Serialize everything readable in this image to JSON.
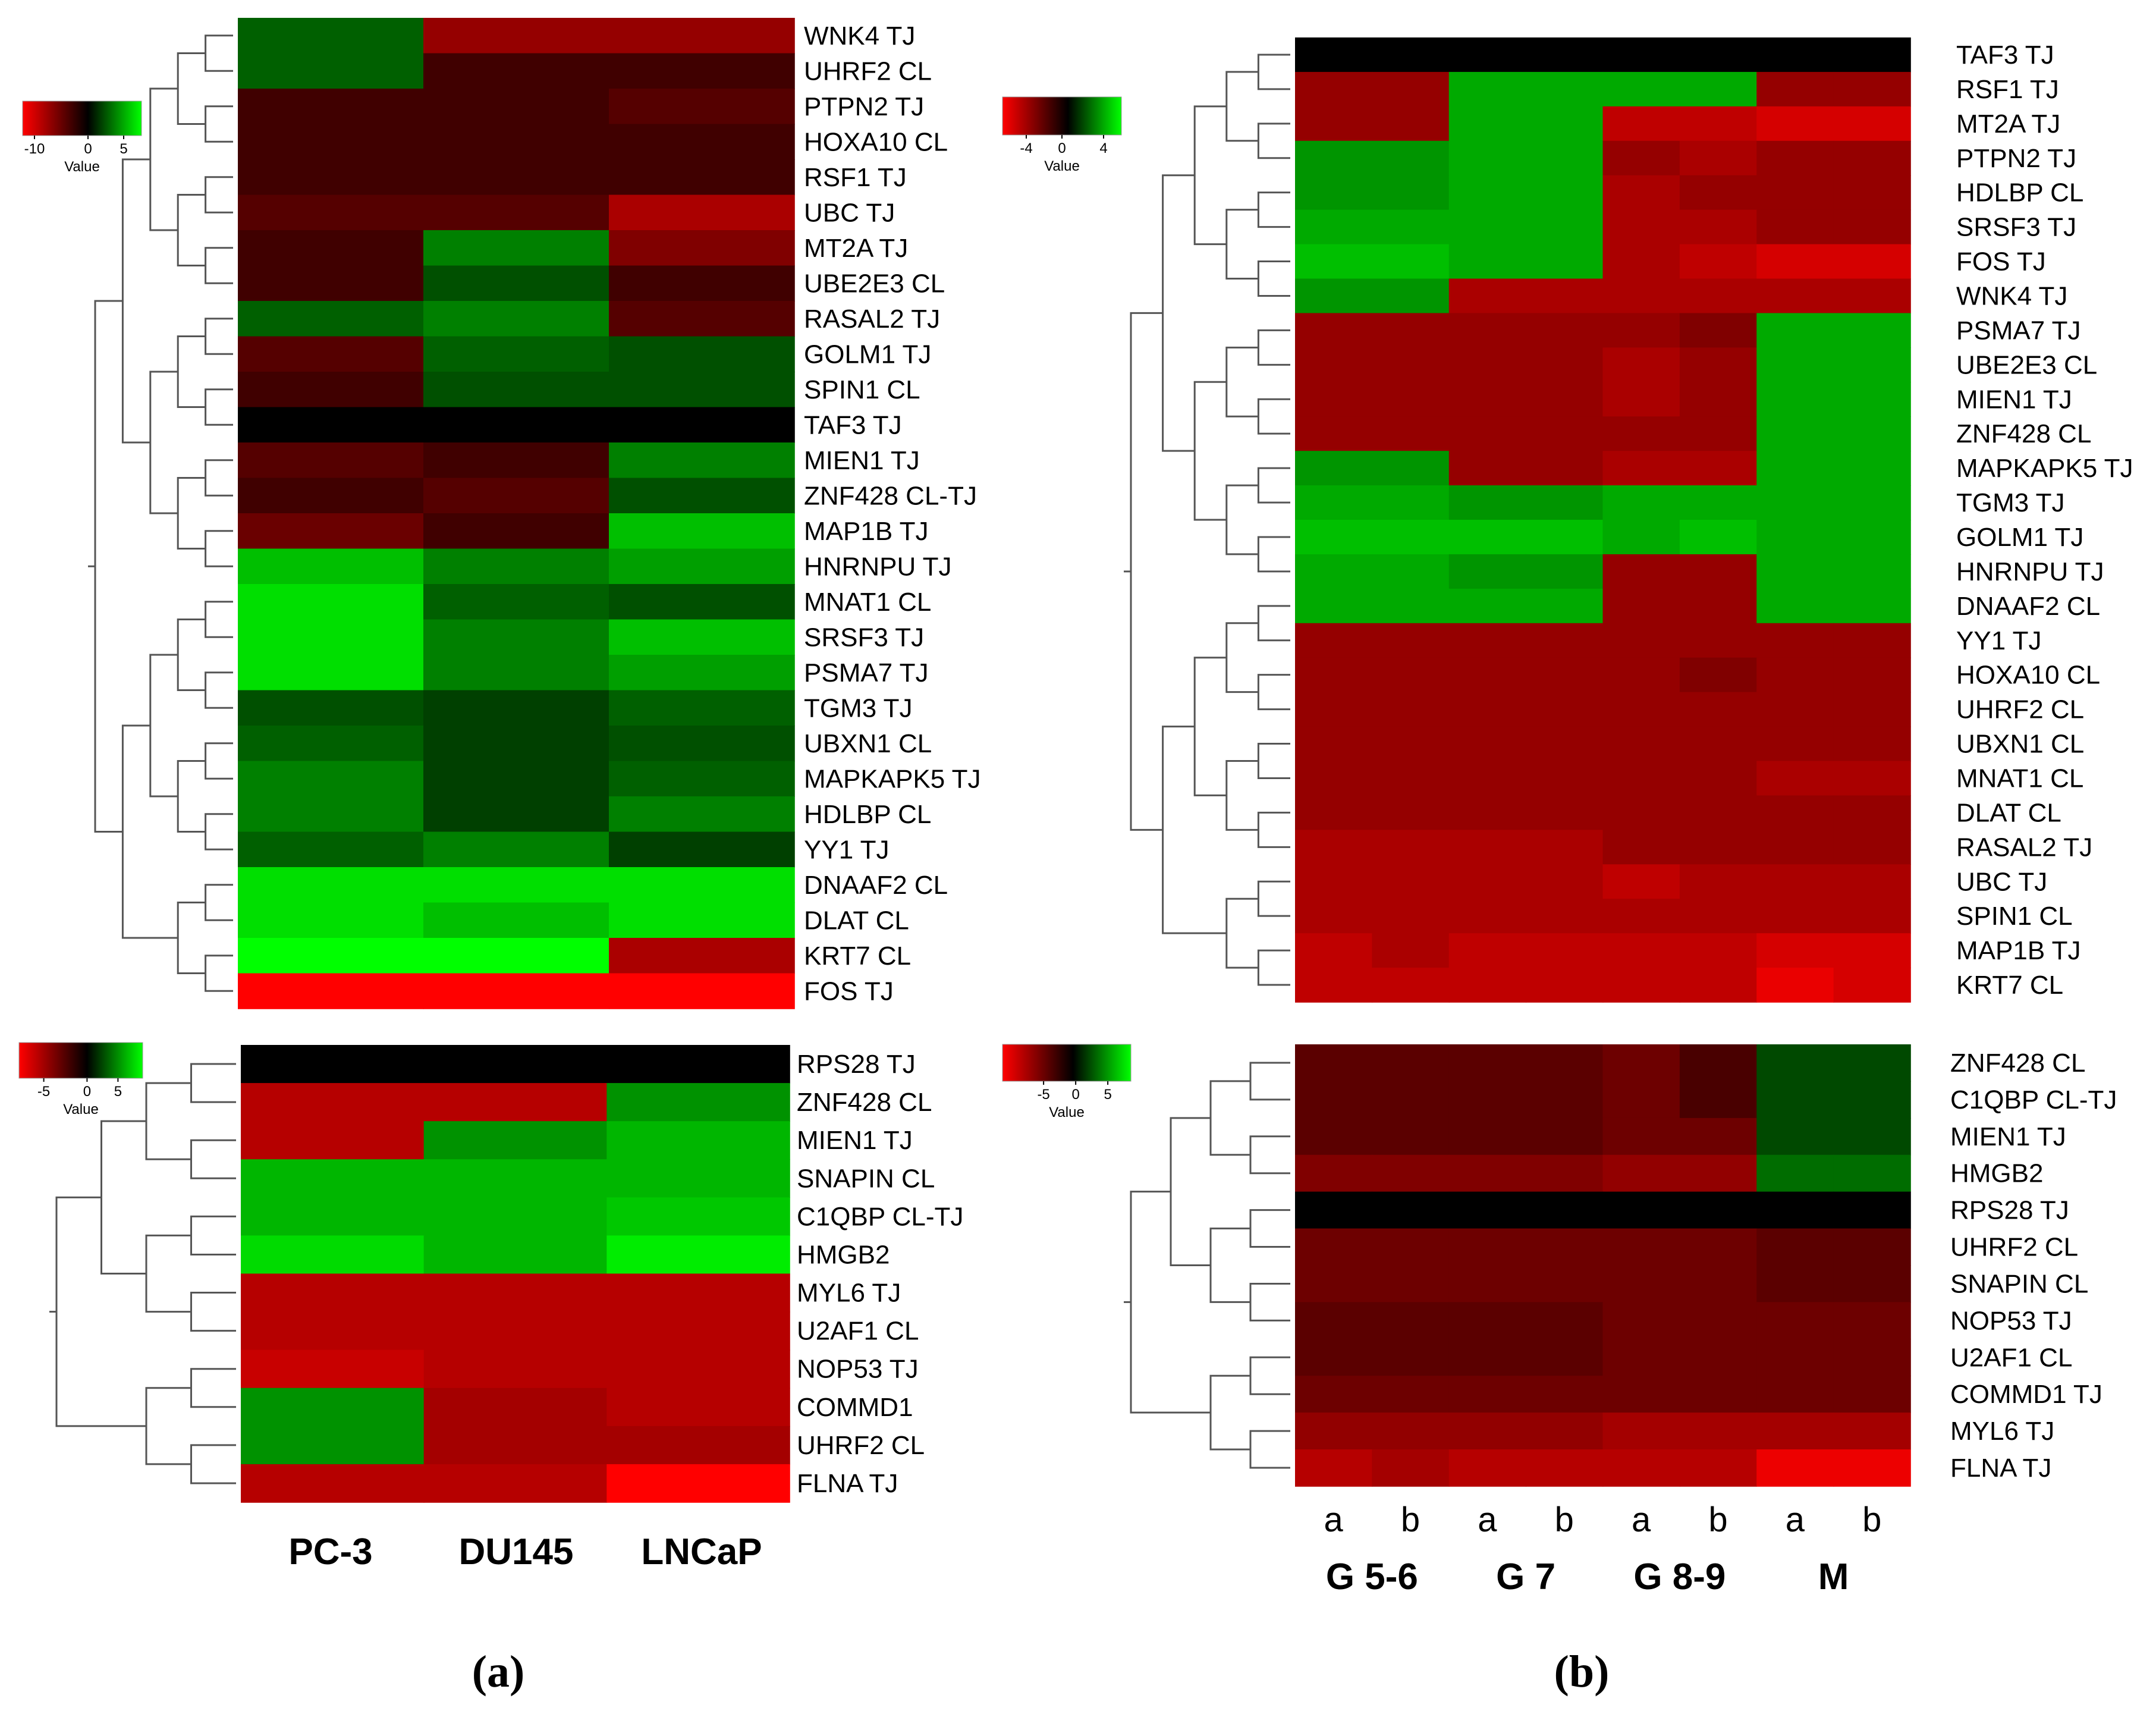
{
  "figure": {
    "panel_labels": [
      "(a)",
      "(b)"
    ],
    "colors": {
      "negative": "#ff0000",
      "zero": "#000000",
      "positive": "#00ff00"
    }
  },
  "chart_data": [
    {
      "type": "heatmap",
      "panel": "(a)",
      "color_key": {
        "title": "Value",
        "ticks": [
          "-10",
          "0",
          "5"
        ],
        "range": [
          -12,
          8
        ]
      },
      "columns": [
        "PC-3",
        "DU145",
        "LNCaP"
      ],
      "rows": [
        "WNK4 TJ",
        "UHRF2 CL",
        "PTPN2 TJ",
        "HOXA10 CL",
        "RSF1 TJ",
        "UBC TJ",
        "MT2A TJ",
        "UBE2E3 CL",
        "RASAL2 TJ",
        "GOLM1 TJ",
        "SPIN1 CL",
        "TAF3 TJ",
        "MIEN1 TJ",
        "ZNF428 CL-TJ",
        "MAP1B TJ",
        "HNRNPU TJ",
        "MNAT1 CL",
        "SRSF3 TJ",
        "PSMA7 TJ",
        "TGM3 TJ",
        "UBXN1 CL",
        "MAPKAPK5 TJ",
        "HDLBP CL",
        "YY1 TJ",
        "DNAAF2 CL",
        "DLAT CL",
        "KRT7 CL",
        "FOS TJ"
      ],
      "values": [
        [
          3,
          -7,
          -7
        ],
        [
          3,
          -3,
          -3
        ],
        [
          -3,
          -3,
          -4
        ],
        [
          -3,
          -3,
          -3
        ],
        [
          -3,
          -3,
          -3
        ],
        [
          -4,
          -4,
          -8
        ],
        [
          -3,
          4,
          -6
        ],
        [
          -3,
          2.5,
          -3
        ],
        [
          3,
          4,
          -4
        ],
        [
          -4,
          3,
          2.5
        ],
        [
          -3,
          2.5,
          2.5
        ],
        [
          0,
          0,
          0
        ],
        [
          -4,
          -3,
          4
        ],
        [
          -3,
          -4,
          2.5
        ],
        [
          -5,
          -3,
          6
        ],
        [
          6,
          4,
          5
        ],
        [
          7,
          3,
          2.5
        ],
        [
          7,
          4,
          6
        ],
        [
          7,
          4,
          5
        ],
        [
          2.5,
          2,
          3
        ],
        [
          3,
          2,
          2.5
        ],
        [
          4,
          2,
          3
        ],
        [
          4,
          2,
          4
        ],
        [
          3,
          4,
          2
        ],
        [
          7,
          7,
          7
        ],
        [
          7,
          6,
          7
        ],
        [
          8,
          8,
          -8
        ],
        [
          -12,
          -12,
          -12
        ]
      ]
    },
    {
      "type": "heatmap",
      "panel": "(a)",
      "color_key": {
        "title": "Value",
        "ticks": [
          "-5",
          "0",
          "5"
        ],
        "range": [
          -7,
          7
        ]
      },
      "columns": [
        "PC-3",
        "DU145",
        "LNCaP"
      ],
      "rows": [
        "RPS28  TJ",
        "ZNF428 CL",
        "MIEN1 TJ",
        "SNAPIN CL",
        "C1QBP CL-TJ",
        "HMGB2",
        "MYL6 TJ",
        "U2AF1 CL",
        "NOP53 TJ",
        "COMMD1",
        "UHRF2 CL",
        "FLNA TJ"
      ],
      "values": [
        [
          0,
          0,
          0
        ],
        [
          -5,
          -5,
          4
        ],
        [
          -5,
          4,
          5
        ],
        [
          5,
          5,
          5
        ],
        [
          5,
          5,
          5.5
        ],
        [
          6,
          5,
          6.5
        ],
        [
          -5,
          -5,
          -5
        ],
        [
          -5,
          -5,
          -5
        ],
        [
          -5.5,
          -5,
          -5
        ],
        [
          4,
          -4.5,
          -5
        ],
        [
          4,
          -4.5,
          -4.5
        ],
        [
          -5,
          -5,
          -7
        ]
      ]
    },
    {
      "type": "heatmap",
      "panel": "(b)",
      "color_key": {
        "title": "Value",
        "ticks": [
          "-4",
          "0",
          "4"
        ],
        "range": [
          -6,
          6
        ]
      },
      "columns": [
        "a",
        "b",
        "a",
        "b",
        "a",
        "b",
        "a",
        "b"
      ],
      "column_groups": [
        {
          "label": "G 5-6",
          "span": 2
        },
        {
          "label": "G 7",
          "span": 2
        },
        {
          "label": "G 8-9",
          "span": 2
        },
        {
          "label": "M",
          "span": 2
        }
      ],
      "rows": [
        "TAF3 TJ",
        "RSF1 TJ",
        "MT2A TJ",
        "PTPN2 TJ",
        "HDLBP CL",
        "SRSF3 TJ",
        "FOS TJ",
        "WNK4 TJ",
        "PSMA7 TJ",
        "UBE2E3 CL",
        "MIEN1 TJ",
        "ZNF428 CL",
        "MAPKAPK5 TJ",
        "TGM3 TJ",
        "GOLM1 TJ",
        "HNRNPU TJ",
        "DNAAF2 CL",
        "YY1 TJ",
        "HOXA10 CL",
        "UHRF2 CL",
        "UBXN1 CL",
        "MNAT1 CL",
        "DLAT CL",
        "RASAL2 TJ",
        "UBC TJ",
        "SPIN1 CL",
        "MAP1B TJ",
        "KRT7 CL"
      ],
      "values": [
        [
          0,
          0,
          0,
          0,
          0,
          0,
          0,
          0
        ],
        [
          -3.5,
          -3.5,
          4,
          4,
          4,
          4,
          -3.5,
          -3.5
        ],
        [
          -3.5,
          -3.5,
          4,
          4,
          -4.5,
          -4.5,
          -5,
          -5
        ],
        [
          3.5,
          3.5,
          4,
          4,
          -3.5,
          -4,
          -3.5,
          -3.5
        ],
        [
          3.5,
          3.5,
          4,
          4,
          -4,
          -3.5,
          -3.5,
          -3.5
        ],
        [
          4,
          4,
          4,
          4,
          -4,
          -4,
          -3.5,
          -3.5
        ],
        [
          4.5,
          4.5,
          4,
          4,
          -4,
          -4.5,
          -5,
          -5
        ],
        [
          3.5,
          3.5,
          -4,
          -4,
          -4,
          -4,
          -4,
          -4
        ],
        [
          -3.5,
          -3.5,
          -3.5,
          -3.5,
          -3.5,
          -3,
          4,
          4
        ],
        [
          -3.5,
          -3.5,
          -3.5,
          -3.5,
          -4,
          -3.5,
          4,
          4
        ],
        [
          -3.5,
          -3.5,
          -3.5,
          -3.5,
          -4,
          -3.5,
          4,
          4
        ],
        [
          -3.5,
          -3.5,
          -3.5,
          -3.5,
          -3.5,
          -3.5,
          4,
          4
        ],
        [
          3.5,
          3.5,
          -3.5,
          -3.5,
          -4,
          -4,
          4,
          4
        ],
        [
          4,
          4,
          3.5,
          3.5,
          4,
          4,
          4,
          4
        ],
        [
          4.5,
          4.5,
          4.5,
          4.5,
          4,
          4.5,
          4,
          4
        ],
        [
          4,
          4,
          3.5,
          3.5,
          -3.5,
          -3.5,
          4,
          4
        ],
        [
          4,
          4,
          4,
          4,
          -3.5,
          -3.5,
          4,
          4
        ],
        [
          -3.5,
          -3.5,
          -3.5,
          -3.5,
          -3.5,
          -3.5,
          -3.5,
          -3.5
        ],
        [
          -3.5,
          -3.5,
          -3.5,
          -3.5,
          -3.5,
          -3,
          -3.5,
          -3.5
        ],
        [
          -3.5,
          -3.5,
          -3.5,
          -3.5,
          -3.5,
          -3.5,
          -3.5,
          -3.5
        ],
        [
          -3.5,
          -3.5,
          -3.5,
          -3.5,
          -3.5,
          -3.5,
          -3.5,
          -3.5
        ],
        [
          -3.5,
          -3.5,
          -3.5,
          -3.5,
          -3.5,
          -3.5,
          -4,
          -4
        ],
        [
          -3.5,
          -3.5,
          -3.5,
          -3.5,
          -3.5,
          -3.5,
          -3.5,
          -3.5
        ],
        [
          -4,
          -4,
          -4,
          -4,
          -3.5,
          -3.5,
          -3.5,
          -3.5
        ],
        [
          -4,
          -4,
          -4,
          -4,
          -4.5,
          -4,
          -4,
          -4
        ],
        [
          -4,
          -4,
          -4,
          -4,
          -4,
          -4,
          -4,
          -4
        ],
        [
          -4.5,
          -4,
          -4.5,
          -4.5,
          -4.5,
          -4.5,
          -5,
          -5
        ],
        [
          -4.5,
          -4.5,
          -4.5,
          -4.5,
          -4.5,
          -4.5,
          -5.5,
          -5
        ]
      ]
    },
    {
      "type": "heatmap",
      "panel": "(b)",
      "color_key": {
        "title": "Value",
        "ticks": [
          "-5",
          "0",
          "5"
        ],
        "range": [
          -7,
          7
        ]
      },
      "columns": [
        "a",
        "b",
        "a",
        "b",
        "a",
        "b",
        "a",
        "b"
      ],
      "column_groups": [
        {
          "label": "G 5-6",
          "span": 2
        },
        {
          "label": "G 7",
          "span": 2
        },
        {
          "label": "G 8-9",
          "span": 2
        },
        {
          "label": "M",
          "span": 2
        }
      ],
      "rows": [
        "ZNF428 CL",
        "C1QBP CL-TJ",
        "MIEN1 TJ",
        "HMGB2",
        "RPS28  TJ",
        "UHRF2 CL",
        "SNAPIN CL",
        "NOP53 TJ",
        "U2AF1 CL",
        "COMMD1 TJ",
        "MYL6 TJ",
        "FLNA TJ"
      ],
      "values": [
        [
          -2.5,
          -2.5,
          -2.5,
          -2.5,
          -3,
          -2,
          2,
          2
        ],
        [
          -2.5,
          -2.5,
          -2.5,
          -2.5,
          -3,
          -2,
          2,
          2
        ],
        [
          -2.5,
          -2.5,
          -2.5,
          -2.5,
          -3,
          -3,
          2,
          2
        ],
        [
          -3.5,
          -3.5,
          -3.5,
          -3.5,
          -4,
          -4,
          3,
          3
        ],
        [
          0,
          0,
          0,
          0,
          0,
          0,
          0,
          0
        ],
        [
          -3,
          -3,
          -3,
          -3,
          -3,
          -3,
          -2.5,
          -2.5
        ],
        [
          -3,
          -3,
          -3,
          -3,
          -3,
          -3,
          -2.5,
          -2.5
        ],
        [
          -2.5,
          -2.5,
          -2.5,
          -2.5,
          -3,
          -3,
          -3,
          -3
        ],
        [
          -2.5,
          -2.5,
          -2.5,
          -2.5,
          -3,
          -3,
          -3,
          -3
        ],
        [
          -3,
          -3,
          -3,
          -3,
          -3,
          -3,
          -3,
          -3
        ],
        [
          -4,
          -4,
          -4,
          -4,
          -4.5,
          -4.5,
          -4.5,
          -4.5
        ],
        [
          -5,
          -4.5,
          -5,
          -5,
          -5,
          -5,
          -6.5,
          -6.5
        ]
      ]
    }
  ]
}
